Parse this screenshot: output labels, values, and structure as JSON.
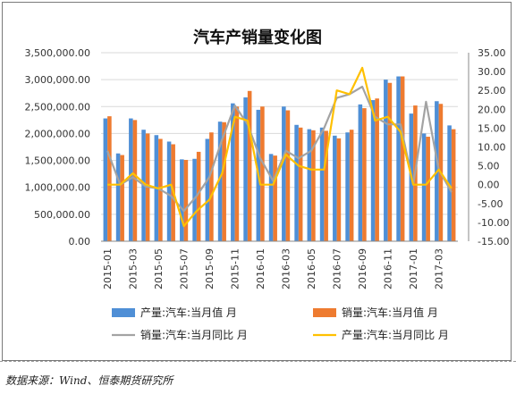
{
  "source": "数据来源：Wind、恒泰期货研究所",
  "chart_data": {
    "type": "bar",
    "title": "汽车产销量变化图",
    "categories": [
      "2015-01",
      "2015-02",
      "2015-03",
      "2015-04",
      "2015-05",
      "2015-06",
      "2015-07",
      "2015-08",
      "2015-09",
      "2015-10",
      "2015-11",
      "2015-12",
      "2016-01",
      "2016-02",
      "2016-03",
      "2016-04",
      "2016-05",
      "2016-06",
      "2016-07",
      "2016-08",
      "2016-09",
      "2016-10",
      "2016-11",
      "2016-12",
      "2017-01",
      "2017-02",
      "2017-03",
      "2017-04"
    ],
    "x_tick_labels": [
      "2015-01",
      "2015-03",
      "2015-05",
      "2015-07",
      "2015-09",
      "2015-11",
      "2016-01",
      "2016-03",
      "2016-05",
      "2016-07",
      "2016-09",
      "2016-11",
      "2017-01",
      "2017-03"
    ],
    "y_left": {
      "ylim": [
        0,
        3500000
      ],
      "ticks": [
        "0.00",
        "500,000.00",
        "1,000,000.00",
        "1,500,000.00",
        "2,000,000.00",
        "2,500,000.00",
        "3,000,000.00",
        "3,500,000.00"
      ],
      "tick_values": [
        0,
        500000,
        1000000,
        1500000,
        2000000,
        2500000,
        3000000,
        3500000
      ]
    },
    "y_right": {
      "ylim": [
        -15,
        35
      ],
      "ticks": [
        "-15.00",
        "-10.00",
        "-5.00",
        "0.00",
        "5.00",
        "10.00",
        "15.00",
        "20.00",
        "25.00",
        "30.00",
        "35.00"
      ],
      "tick_values": [
        -15,
        -10,
        -5,
        0,
        5,
        10,
        15,
        20,
        25,
        30,
        35
      ]
    },
    "series": [
      {
        "name": "产量:汽车:当月值  月",
        "kind": "bar",
        "axis": "left",
        "color": "#4f8fd6",
        "values": [
          2280000,
          1630000,
          2280000,
          2070000,
          1970000,
          1850000,
          1520000,
          1530000,
          1900000,
          2220000,
          2560000,
          2670000,
          2440000,
          1620000,
          2500000,
          2160000,
          2080000,
          2110000,
          1960000,
          2020000,
          2540000,
          2620000,
          3000000,
          3060000,
          2370000,
          2000000,
          2600000,
          2150000
        ]
      },
      {
        "name": "销量:汽车:当月值  月",
        "kind": "bar",
        "axis": "left",
        "color": "#ee7b30",
        "values": [
          2320000,
          1600000,
          2250000,
          2000000,
          1900000,
          1800000,
          1510000,
          1660000,
          2020000,
          2210000,
          2500000,
          2790000,
          2500000,
          1590000,
          2430000,
          2110000,
          2060000,
          2050000,
          1910000,
          2070000,
          2470000,
          2650000,
          2940000,
          3060000,
          2520000,
          1940000,
          2550000,
          2080000
        ]
      },
      {
        "name": "销量:汽车:当月同比  月",
        "kind": "line",
        "axis": "right",
        "color": "#a3a3a3",
        "values": [
          9,
          0,
          2,
          -0.5,
          -1,
          -3,
          -7,
          -3,
          2,
          12,
          21,
          16,
          7,
          1,
          9,
          7,
          9,
          15,
          23,
          24,
          26,
          18,
          16,
          16,
          0,
          22,
          4,
          -2
        ]
      },
      {
        "name": "产量:汽车:当月同比  月",
        "kind": "line",
        "axis": "right",
        "color": "#ffc000",
        "values": [
          0,
          0,
          3,
          0,
          -1,
          0,
          -11,
          -7,
          -4,
          3,
          18,
          17,
          0,
          0,
          8,
          5,
          4,
          4,
          25,
          24,
          31,
          17,
          18,
          14,
          0,
          0,
          4,
          -1
        ]
      }
    ],
    "legend_position": "bottom",
    "grid": true
  }
}
